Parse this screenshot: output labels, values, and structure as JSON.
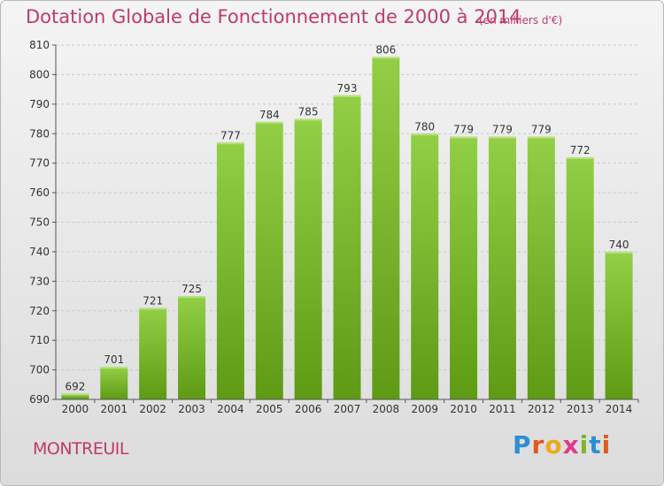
{
  "header": {
    "title": "Dotation Globale de Fonctionnement de 2000 à 2014",
    "subtitle": "(en milliers d'€)"
  },
  "footer": {
    "city": "MONTREUIL",
    "brand_letters": [
      "P",
      "r",
      "o",
      "x",
      "i",
      "t",
      "i"
    ],
    "brand_colors": [
      "#2c8fd6",
      "#e05a1c",
      "#f0a81c",
      "#e03a8a",
      "#7ab62c",
      "#2c8fd6",
      "#e05a1c"
    ]
  },
  "colors": {
    "bar_top": "#93cf46",
    "bar_bottom": "#5e9a14",
    "grid": "#c8c8c8",
    "axis_text": "#333333",
    "accent": "#c03a6a"
  },
  "chart_data": {
    "type": "bar",
    "categories": [
      "2000",
      "2001",
      "2002",
      "2003",
      "2004",
      "2005",
      "2006",
      "2007",
      "2008",
      "2009",
      "2010",
      "2011",
      "2012",
      "2013",
      "2014"
    ],
    "values": [
      692,
      701,
      721,
      725,
      777,
      784,
      785,
      793,
      806,
      780,
      779,
      779,
      779,
      772,
      740
    ],
    "data_labels": [
      "692",
      "701",
      "721",
      "725",
      "777",
      "784",
      "785",
      "793",
      "806",
      "780",
      "779",
      "779",
      "779",
      "772",
      "740"
    ],
    "yticks": [
      690,
      700,
      710,
      720,
      730,
      740,
      750,
      760,
      770,
      780,
      790,
      800,
      810
    ],
    "ylim": [
      690,
      810
    ],
    "grid": true,
    "legend": "none"
  }
}
